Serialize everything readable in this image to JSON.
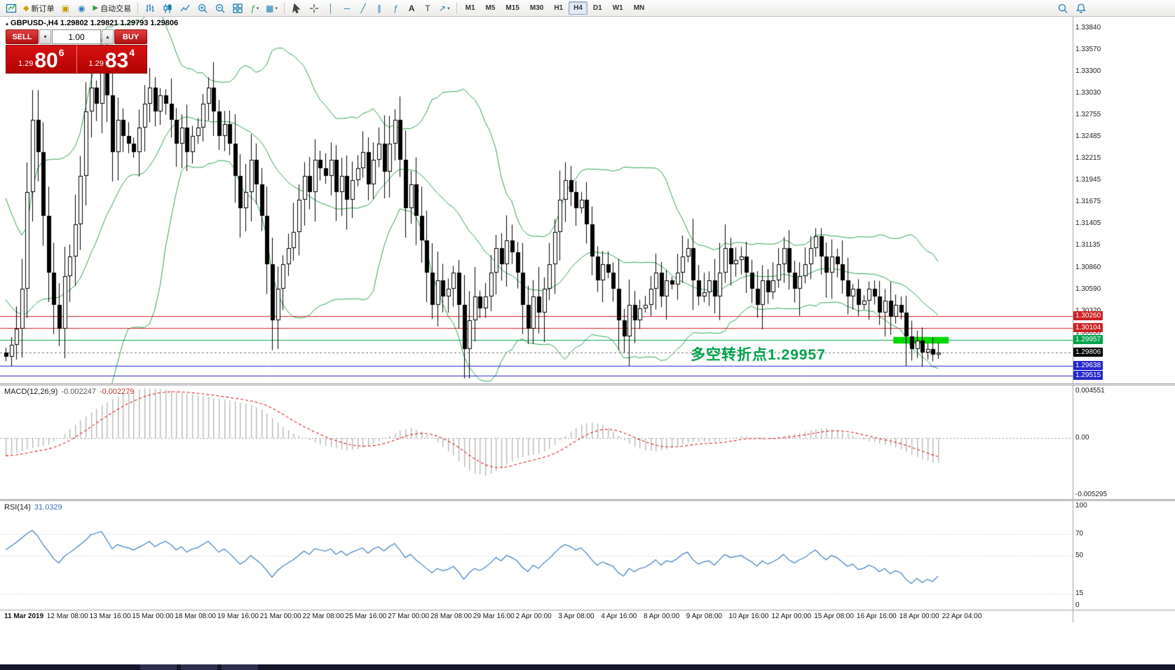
{
  "toolbar": {
    "buttons_left": [
      {
        "name": "new-chart-icon"
      },
      {
        "name": "new-order-button",
        "label": "新订单"
      },
      {
        "name": "market-icon"
      },
      {
        "name": "community-icon"
      },
      {
        "name": "auto-trading-button",
        "label": "自动交易"
      }
    ],
    "buttons_chart": [
      {
        "name": "bar-chart-icon"
      },
      {
        "name": "candlestick-chart-icon"
      },
      {
        "name": "line-chart-icon"
      },
      {
        "name": "zoom-in-icon"
      },
      {
        "name": "zoom-out-icon"
      },
      {
        "name": "tile-windows-icon"
      },
      {
        "name": "indicators-icon"
      },
      {
        "name": "templates-icon"
      }
    ],
    "buttons_tools": [
      {
        "name": "cursor-icon"
      },
      {
        "name": "crosshair-icon"
      },
      {
        "name": "vertical-line-icon"
      },
      {
        "name": "horizontal-line-icon"
      },
      {
        "name": "trendline-icon"
      },
      {
        "name": "channel-icon"
      },
      {
        "name": "fibonacci-icon"
      },
      {
        "name": "text-icon"
      },
      {
        "name": "label-icon"
      },
      {
        "name": "arrow-tool-icon"
      }
    ],
    "timeframes": [
      "M1",
      "M5",
      "M15",
      "M30",
      "H1",
      "H4",
      "D1",
      "W1",
      "MN"
    ],
    "active_timeframe": "H4",
    "buttons_right": [
      {
        "name": "search-icon"
      },
      {
        "name": "alerts-icon"
      }
    ]
  },
  "quote_panel": {
    "sell_label": "SELL",
    "buy_label": "BUY",
    "volume": "1.00",
    "spin_down_glyph": "▾",
    "spin_up_glyph": "▴",
    "sell_price_small": "1.29",
    "sell_price_big": "80",
    "sell_price_sup": "6",
    "buy_price_small": "1.29",
    "buy_price_big": "83",
    "buy_price_sup": "4"
  },
  "chart": {
    "marker_glyph": "▴",
    "title": "GBPUSD-,H4  1.29802 1.29821 1.29793 1.29806",
    "annotation_text": "多空转折点1.29957",
    "annotation_color": "#00a24a"
  },
  "macd": {
    "label": "MACD(12,26,9)",
    "value_main": "-0.002247",
    "value_signal": "-0.002279",
    "scale_labels": [
      {
        "text": "0.004551",
        "value": 0.004551
      },
      {
        "text": "0.00",
        "value": 0
      },
      {
        "text": "-0.005295",
        "value": -0.005295
      }
    ]
  },
  "rsi": {
    "label": "RSI(14)",
    "value": "31.0329",
    "scale_labels": [
      {
        "text": "100",
        "value": 100
      },
      {
        "text": "70",
        "value": 70
      },
      {
        "text": "50",
        "value": 50
      },
      {
        "text": "15",
        "value": 15
      },
      {
        "text": "0",
        "value": 0
      }
    ],
    "levels": [
      70,
      50,
      15
    ]
  },
  "chart_data": {
    "type": "candlestick",
    "symbol": "GBPUSD-",
    "timeframe": "H4",
    "current_ohlc": {
      "open": 1.29802,
      "high": 1.29821,
      "low": 1.29793,
      "close": 1.29806
    },
    "bid": 1.29806,
    "ask": 1.29834,
    "y_ticks": [
      "1.33840",
      "1.33570",
      "1.33300",
      "1.33030",
      "1.32755",
      "1.32485",
      "1.32215",
      "1.31945",
      "1.31675",
      "1.31405",
      "1.31135",
      "1.30860",
      "1.30590",
      "1.30320",
      "1.30050"
    ],
    "x_labels": [
      "11 Mar 2019",
      "12 Mar 08:00",
      "13 Mar 16:00",
      "15 Mar 00:00",
      "18 Mar 08:00",
      "19 Mar 16:00",
      "21 Mar 00:00",
      "22 Mar 08:00",
      "25 Mar 16:00",
      "27 Mar 00:00",
      "28 Mar 08:00",
      "29 Mar 16:00",
      "2 Apr 00:00",
      "3 Apr 08:00",
      "4 Apr 16:00",
      "8 Apr 00:00",
      "9 Apr 08:00",
      "10 Apr 16:00",
      "12 Apr 00:00",
      "15 Apr 08:00",
      "16 Apr 16:00",
      "18 Apr 00:00",
      "22 Apr 04:00"
    ],
    "bollinger": {
      "period": 20,
      "deviation": 2,
      "color": "#2fa44f"
    },
    "levels": [
      {
        "name": "resistance-line-1",
        "price": 1.3026,
        "color": "#cc2222",
        "style": "solid"
      },
      {
        "name": "resistance-line-2",
        "price": 1.30104,
        "color": "#cc2222",
        "style": "solid"
      },
      {
        "name": "pivot-line",
        "price": 1.29957,
        "color": "#00a24a",
        "style": "solid"
      },
      {
        "name": "current-price",
        "price": 1.29806,
        "color": "#777777",
        "style": "dashed",
        "badge_bg": "#000000"
      },
      {
        "name": "support-line-1",
        "price": 1.29638,
        "color": "#2626cc",
        "style": "solid"
      },
      {
        "name": "support-line-2",
        "price": 1.29515,
        "color": "#2626cc",
        "style": "solid"
      }
    ],
    "highlight_rect": {
      "from_bar": 167,
      "to_bar": 177,
      "top": 1.29997,
      "bottom": 1.29915,
      "color": "#00d800"
    },
    "pre_closes": [
      1.317,
      1.316,
      1.314,
      1.313,
      1.315,
      1.312,
      1.31,
      1.308,
      1.306,
      1.302,
      1.3,
      1.2985,
      1.301,
      1.303,
      1.3015,
      1.2995,
      1.298,
      1.3,
      1.299,
      1.298
    ],
    "closes": [
      1.2975,
      1.299,
      1.301,
      1.306,
      1.318,
      1.327,
      1.323,
      1.315,
      1.308,
      1.304,
      1.301,
      1.3075,
      1.31,
      1.314,
      1.32,
      1.328,
      1.331,
      1.329,
      1.334,
      1.33,
      1.323,
      1.327,
      1.325,
      1.324,
      1.323,
      1.326,
      1.329,
      1.331,
      1.328,
      1.33,
      1.329,
      1.327,
      1.324,
      1.326,
      1.323,
      1.325,
      1.326,
      1.329,
      1.331,
      1.328,
      1.325,
      1.3265,
      1.324,
      1.32,
      1.316,
      1.318,
      1.322,
      1.319,
      1.315,
      1.309,
      1.302,
      1.306,
      1.309,
      1.311,
      1.313,
      1.317,
      1.32,
      1.318,
      1.322,
      1.321,
      1.32,
      1.322,
      1.318,
      1.32,
      1.317,
      1.3195,
      1.321,
      1.323,
      1.319,
      1.322,
      1.324,
      1.3205,
      1.324,
      1.327,
      1.322,
      1.316,
      1.319,
      1.315,
      1.312,
      1.308,
      1.304,
      1.307,
      1.305,
      1.306,
      1.308,
      1.304,
      1.2985,
      1.302,
      1.305,
      1.3035,
      1.305,
      1.308,
      1.311,
      1.309,
      1.312,
      1.3105,
      1.308,
      1.304,
      1.301,
      1.305,
      1.303,
      1.306,
      1.309,
      1.313,
      1.317,
      1.3195,
      1.318,
      1.316,
      1.317,
      1.314,
      1.31,
      1.307,
      1.309,
      1.308,
      1.306,
      1.302,
      1.3,
      1.304,
      1.302,
      1.3035,
      1.304,
      1.306,
      1.308,
      1.305,
      1.307,
      1.3065,
      1.308,
      1.31,
      1.311,
      1.307,
      1.305,
      1.3055,
      1.307,
      1.305,
      1.308,
      1.311,
      1.309,
      1.3095,
      1.31,
      1.308,
      1.306,
      1.304,
      1.307,
      1.3055,
      1.307,
      1.309,
      1.311,
      1.308,
      1.306,
      1.3075,
      1.309,
      1.311,
      1.3125,
      1.31,
      1.308,
      1.31,
      1.309,
      1.307,
      1.305,
      1.306,
      1.304,
      1.3045,
      1.306,
      1.305,
      1.303,
      1.3045,
      1.3025,
      1.304,
      1.303,
      1.3,
      1.2985,
      1.2995,
      1.298,
      1.2985,
      1.2978,
      1.29806
    ],
    "macd_waypoints": [
      [
        0,
        -0.0016
      ],
      [
        4,
        -0.001
      ],
      [
        8,
        -0.0006
      ],
      [
        10,
        0.0
      ],
      [
        14,
        0.0016
      ],
      [
        18,
        0.003
      ],
      [
        22,
        0.004
      ],
      [
        26,
        0.0045
      ],
      [
        30,
        0.0044
      ],
      [
        34,
        0.004
      ],
      [
        38,
        0.0037
      ],
      [
        42,
        0.0034
      ],
      [
        46,
        0.003
      ],
      [
        48,
        0.0026
      ],
      [
        50,
        0.0018
      ],
      [
        52,
        0.001
      ],
      [
        54,
        0.0004
      ],
      [
        56,
        0.0
      ],
      [
        58,
        -0.0004
      ],
      [
        60,
        -0.0007
      ],
      [
        62,
        -0.0009
      ],
      [
        64,
        -0.0011
      ],
      [
        66,
        -0.001
      ],
      [
        68,
        -0.0007
      ],
      [
        70,
        -0.0003
      ],
      [
        72,
        0.0002
      ],
      [
        74,
        0.0007
      ],
      [
        76,
        0.0009
      ],
      [
        78,
        0.0006
      ],
      [
        80,
        0.0
      ],
      [
        82,
        -0.0008
      ],
      [
        84,
        -0.0016
      ],
      [
        86,
        -0.0026
      ],
      [
        88,
        -0.0032
      ],
      [
        90,
        -0.0034
      ],
      [
        92,
        -0.003
      ],
      [
        94,
        -0.0024
      ],
      [
        96,
        -0.0018
      ],
      [
        98,
        -0.0016
      ],
      [
        100,
        -0.0014
      ],
      [
        102,
        -0.001
      ],
      [
        104,
        -0.0002
      ],
      [
        106,
        0.0006
      ],
      [
        108,
        0.0012
      ],
      [
        110,
        0.0014
      ],
      [
        112,
        0.0012
      ],
      [
        114,
        0.0006
      ],
      [
        116,
        -0.0002
      ],
      [
        118,
        -0.0008
      ],
      [
        120,
        -0.0011
      ],
      [
        122,
        -0.0012
      ],
      [
        124,
        -0.001
      ],
      [
        126,
        -0.0007
      ],
      [
        128,
        -0.0004
      ],
      [
        130,
        -0.0003
      ],
      [
        132,
        -0.0004
      ],
      [
        134,
        -0.0003
      ],
      [
        136,
        0.0
      ],
      [
        138,
        0.0002
      ],
      [
        140,
        0.0001
      ],
      [
        142,
        -0.0001
      ],
      [
        144,
        0.0
      ],
      [
        146,
        0.0002
      ],
      [
        148,
        0.0004
      ],
      [
        150,
        0.0006
      ],
      [
        152,
        0.0008
      ],
      [
        154,
        0.0009
      ],
      [
        156,
        0.0007
      ],
      [
        158,
        0.0004
      ],
      [
        160,
        0.0
      ],
      [
        162,
        -0.0003
      ],
      [
        164,
        -0.0005
      ],
      [
        166,
        -0.0007
      ],
      [
        168,
        -0.001
      ],
      [
        170,
        -0.0015
      ],
      [
        172,
        -0.0019
      ],
      [
        174,
        -0.0022
      ],
      [
        175,
        -0.00225
      ]
    ],
    "rsi_waypoints": [
      [
        0,
        55
      ],
      [
        2,
        62
      ],
      [
        4,
        70
      ],
      [
        5,
        73
      ],
      [
        6,
        68
      ],
      [
        7,
        60
      ],
      [
        8,
        54
      ],
      [
        9,
        47
      ],
      [
        10,
        43
      ],
      [
        11,
        49
      ],
      [
        13,
        56
      ],
      [
        15,
        64
      ],
      [
        16,
        69
      ],
      [
        18,
        72
      ],
      [
        19,
        64
      ],
      [
        20,
        56
      ],
      [
        21,
        60
      ],
      [
        22,
        58
      ],
      [
        23,
        57
      ],
      [
        24,
        55
      ],
      [
        26,
        60
      ],
      [
        27,
        63
      ],
      [
        28,
        58
      ],
      [
        29,
        61
      ],
      [
        30,
        63
      ],
      [
        31,
        60
      ],
      [
        32,
        55
      ],
      [
        33,
        58
      ],
      [
        34,
        53
      ],
      [
        35,
        56
      ],
      [
        36,
        57
      ],
      [
        37,
        60
      ],
      [
        38,
        63
      ],
      [
        39,
        58
      ],
      [
        40,
        53
      ],
      [
        41,
        56
      ],
      [
        42,
        52
      ],
      [
        43,
        47
      ],
      [
        44,
        42
      ],
      [
        45,
        45
      ],
      [
        46,
        50
      ],
      [
        47,
        46
      ],
      [
        48,
        42
      ],
      [
        49,
        36
      ],
      [
        50,
        30
      ],
      [
        51,
        36
      ],
      [
        52,
        40
      ],
      [
        53,
        43
      ],
      [
        54,
        46
      ],
      [
        55,
        50
      ],
      [
        56,
        54
      ],
      [
        57,
        51
      ],
      [
        58,
        56
      ],
      [
        59,
        55
      ],
      [
        60,
        54
      ],
      [
        61,
        56
      ],
      [
        62,
        51
      ],
      [
        63,
        54
      ],
      [
        64,
        50
      ],
      [
        65,
        53
      ],
      [
        66,
        55
      ],
      [
        67,
        57
      ],
      [
        68,
        52
      ],
      [
        69,
        56
      ],
      [
        70,
        58
      ],
      [
        71,
        54
      ],
      [
        72,
        58
      ],
      [
        73,
        61
      ],
      [
        74,
        55
      ],
      [
        75,
        48
      ],
      [
        76,
        51
      ],
      [
        77,
        46
      ],
      [
        78,
        42
      ],
      [
        79,
        38
      ],
      [
        80,
        34
      ],
      [
        81,
        38
      ],
      [
        82,
        36
      ],
      [
        83,
        37
      ],
      [
        84,
        40
      ],
      [
        85,
        35
      ],
      [
        86,
        28
      ],
      [
        87,
        34
      ],
      [
        88,
        38
      ],
      [
        89,
        36
      ],
      [
        90,
        39
      ],
      [
        91,
        43
      ],
      [
        92,
        48
      ],
      [
        93,
        45
      ],
      [
        94,
        50
      ],
      [
        95,
        48
      ],
      [
        96,
        45
      ],
      [
        97,
        39
      ],
      [
        98,
        35
      ],
      [
        99,
        41
      ],
      [
        100,
        38
      ],
      [
        101,
        43
      ],
      [
        102,
        47
      ],
      [
        103,
        52
      ],
      [
        104,
        57
      ],
      [
        105,
        60
      ],
      [
        106,
        58
      ],
      [
        107,
        55
      ],
      [
        108,
        57
      ],
      [
        109,
        52
      ],
      [
        110,
        46
      ],
      [
        111,
        41
      ],
      [
        112,
        44
      ],
      [
        113,
        42
      ],
      [
        114,
        40
      ],
      [
        115,
        34
      ],
      [
        116,
        31
      ],
      [
        117,
        38
      ],
      [
        118,
        35
      ],
      [
        119,
        38
      ],
      [
        120,
        39
      ],
      [
        121,
        42
      ],
      [
        122,
        46
      ],
      [
        123,
        41
      ],
      [
        124,
        45
      ],
      [
        125,
        44
      ],
      [
        126,
        47
      ],
      [
        127,
        51
      ],
      [
        128,
        53
      ],
      [
        129,
        46
      ],
      [
        130,
        42
      ],
      [
        131,
        44
      ],
      [
        132,
        45
      ],
      [
        133,
        41
      ],
      [
        134,
        46
      ],
      [
        135,
        51
      ],
      [
        136,
        48
      ],
      [
        137,
        49
      ],
      [
        138,
        50
      ],
      [
        139,
        47
      ],
      [
        140,
        44
      ],
      [
        141,
        40
      ],
      [
        142,
        45
      ],
      [
        143,
        42
      ],
      [
        144,
        44
      ],
      [
        145,
        47
      ],
      [
        146,
        51
      ],
      [
        147,
        46
      ],
      [
        148,
        43
      ],
      [
        149,
        46
      ],
      [
        150,
        48
      ],
      [
        151,
        52
      ],
      [
        152,
        55
      ],
      [
        153,
        50
      ],
      [
        154,
        46
      ],
      [
        155,
        50
      ],
      [
        156,
        48
      ],
      [
        157,
        44
      ],
      [
        158,
        40
      ],
      [
        159,
        42
      ],
      [
        160,
        37
      ],
      [
        161,
        38
      ],
      [
        162,
        41
      ],
      [
        163,
        39
      ],
      [
        164,
        35
      ],
      [
        165,
        38
      ],
      [
        166,
        33
      ],
      [
        167,
        36
      ],
      [
        168,
        34
      ],
      [
        169,
        28
      ],
      [
        170,
        24
      ],
      [
        171,
        29
      ],
      [
        172,
        25
      ],
      [
        173,
        28
      ],
      [
        174,
        26
      ],
      [
        175,
        31
      ]
    ]
  }
}
